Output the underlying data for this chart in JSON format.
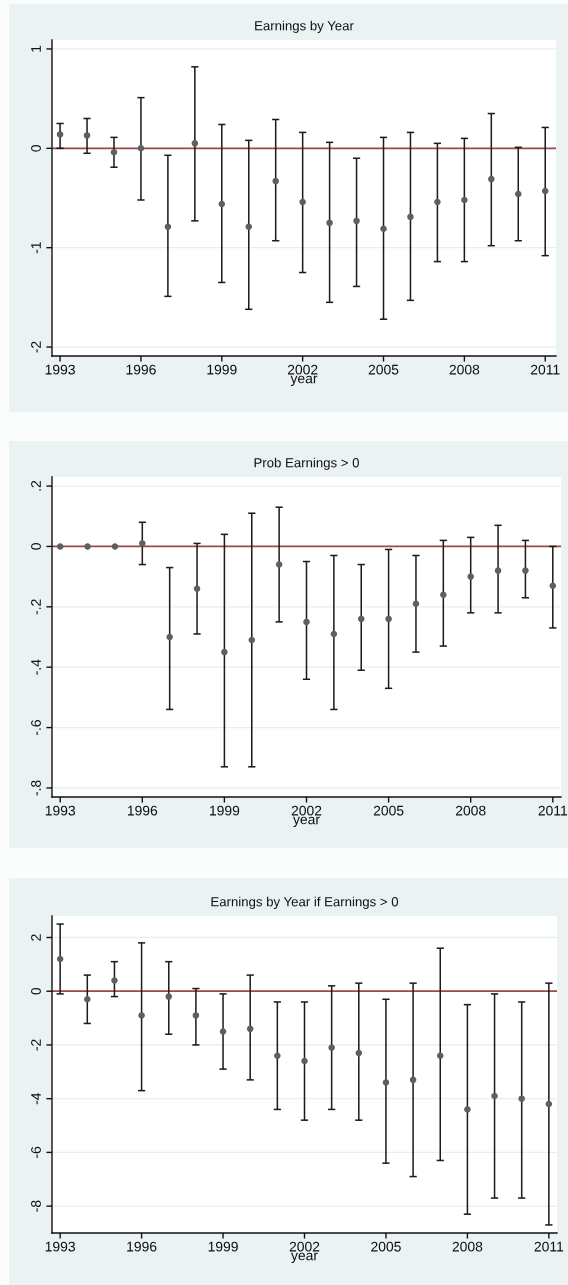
{
  "chart_data": [
    {
      "type": "scatter",
      "title": "Earnings by Year",
      "xlabel": "year",
      "x": [
        1993,
        1994,
        1995,
        1996,
        1997,
        1998,
        1999,
        2000,
        2001,
        2002,
        2003,
        2004,
        2005,
        2006,
        2007,
        2008,
        2009,
        2010,
        2011
      ],
      "values": [
        0.14,
        0.13,
        -0.04,
        0.0,
        -0.79,
        0.05,
        -0.56,
        -0.79,
        -0.33,
        -0.54,
        -0.75,
        -0.73,
        -0.81,
        -0.69,
        -0.54,
        -0.52,
        -0.31,
        -0.46,
        -0.43
      ],
      "errors": [
        [
          0.0,
          0.25
        ],
        [
          -0.05,
          0.3
        ],
        [
          -0.19,
          0.11
        ],
        [
          -0.52,
          0.51
        ],
        [
          -1.49,
          -0.07
        ],
        [
          -0.73,
          0.82
        ],
        [
          -1.35,
          0.24
        ],
        [
          -1.62,
          0.08
        ],
        [
          -0.93,
          0.29
        ],
        [
          -1.25,
          0.16
        ],
        [
          -1.55,
          0.06
        ],
        [
          -1.39,
          -0.1
        ],
        [
          -1.72,
          0.11
        ],
        [
          -1.53,
          0.16
        ],
        [
          -1.14,
          0.05
        ],
        [
          -1.14,
          0.1
        ],
        [
          -0.98,
          0.35
        ],
        [
          -0.93,
          0.01
        ],
        [
          -1.08,
          0.21
        ]
      ],
      "color": "#5f5f5f",
      "marker": "circle",
      "grid": "y",
      "xlim": [
        1992.7,
        2011.4
      ],
      "xticks": [
        1993,
        1996,
        1999,
        2002,
        2005,
        2008,
        2011
      ],
      "ylim": [
        -2.09,
        1.09
      ],
      "yticks": [
        -2,
        -1,
        0,
        1
      ],
      "ref_lines": [
        {
          "axis": "y",
          "value": 0,
          "color": "#9b4a4a"
        }
      ]
    },
    {
      "type": "scatter",
      "title": "Prob Earnings > 0",
      "xlabel": "year",
      "x": [
        1993,
        1994,
        1995,
        1996,
        1997,
        1998,
        1999,
        2000,
        2001,
        2002,
        2003,
        2004,
        2005,
        2006,
        2007,
        2008,
        2009,
        2010,
        2011
      ],
      "values": [
        0.0,
        0.0,
        0.0,
        0.01,
        -0.3,
        -0.14,
        -0.35,
        -0.31,
        -0.06,
        -0.25,
        -0.29,
        -0.24,
        -0.24,
        -0.19,
        -0.16,
        -0.1,
        -0.08,
        -0.08,
        -0.13
      ],
      "errors": [
        null,
        null,
        null,
        [
          -0.06,
          0.08
        ],
        [
          -0.54,
          -0.07
        ],
        [
          -0.29,
          0.01
        ],
        [
          -0.73,
          0.04
        ],
        [
          -0.73,
          0.11
        ],
        [
          -0.25,
          0.13
        ],
        [
          -0.44,
          -0.05
        ],
        [
          -0.54,
          -0.03
        ],
        [
          -0.41,
          -0.06
        ],
        [
          -0.47,
          -0.01
        ],
        [
          -0.35,
          -0.03
        ],
        [
          -0.33,
          0.02
        ],
        [
          -0.22,
          0.03
        ],
        [
          -0.22,
          0.07
        ],
        [
          -0.17,
          0.02
        ],
        [
          -0.27,
          0.0
        ]
      ],
      "color": "#5f5f5f",
      "marker": "circle",
      "grid": "y",
      "xlim": [
        1992.7,
        2011.3
      ],
      "xticks": [
        1993,
        1996,
        1999,
        2002,
        2005,
        2008,
        2011
      ],
      "ylim": [
        -0.83,
        0.23
      ],
      "yticks": [
        {
          "value": -0.8,
          "label": "-.8"
        },
        {
          "value": -0.6,
          "label": "-.6"
        },
        {
          "value": -0.4,
          "label": "-.4"
        },
        {
          "value": -0.2,
          "label": "-.2"
        },
        0,
        {
          "value": 0.2,
          "label": ".2"
        }
      ],
      "ref_lines": [
        {
          "axis": "y",
          "value": 0,
          "color": "#9b4a4a"
        }
      ]
    },
    {
      "type": "scatter",
      "title": "Earnings by Year if Earnings > 0",
      "xlabel": "year",
      "x": [
        1993,
        1994,
        1995,
        1996,
        1997,
        1998,
        1999,
        2000,
        2001,
        2002,
        2003,
        2004,
        2005,
        2006,
        2007,
        2008,
        2009,
        2010,
        2011
      ],
      "values": [
        1.2,
        -0.3,
        0.4,
        -0.9,
        -0.2,
        -0.9,
        -1.5,
        -1.4,
        -2.4,
        -2.6,
        -2.1,
        -2.3,
        -3.4,
        -3.3,
        -2.4,
        -4.4,
        -3.9,
        -4.0,
        -4.2
      ],
      "errors": [
        [
          -0.1,
          2.5
        ],
        [
          -1.2,
          0.6
        ],
        [
          -0.2,
          1.1
        ],
        [
          -3.7,
          1.8
        ],
        [
          -1.6,
          1.1
        ],
        [
          -2.0,
          0.1
        ],
        [
          -2.9,
          -0.1
        ],
        [
          -3.3,
          0.6
        ],
        [
          -4.4,
          -0.4
        ],
        [
          -4.8,
          -0.4
        ],
        [
          -4.4,
          0.2
        ],
        [
          -4.8,
          0.3
        ],
        [
          -6.4,
          -0.3
        ],
        [
          -6.9,
          0.3
        ],
        [
          -6.3,
          1.6
        ],
        [
          -8.3,
          -0.5
        ],
        [
          -7.7,
          -0.1
        ],
        [
          -7.7,
          -0.4
        ],
        [
          -8.7,
          0.3
        ]
      ],
      "color": "#5f5f5f",
      "marker": "circle",
      "grid": "y",
      "xlim": [
        1992.7,
        2011.3
      ],
      "xticks": [
        1993,
        1996,
        1999,
        2002,
        2005,
        2008,
        2011
      ],
      "ylim": [
        -9.0,
        2.8
      ],
      "yticks": [
        -8,
        -6,
        -4,
        -2,
        0,
        2
      ],
      "ref_lines": [
        {
          "axis": "y",
          "value": 0,
          "color": "#9b4a4a"
        }
      ]
    }
  ]
}
